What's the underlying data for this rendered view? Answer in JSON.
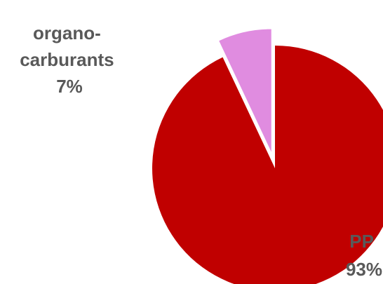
{
  "chart_data": {
    "type": "pie",
    "title": "",
    "slices": [
      {
        "label_lines": [
          "organo-",
          "carburants",
          "7%"
        ],
        "value": 7,
        "color": "#e08ce0",
        "exploded": true
      },
      {
        "label_lines": [
          "PP",
          "93%"
        ],
        "value": 93,
        "color": "#c00000",
        "exploded": false
      }
    ],
    "legend": "none",
    "start_angle": "12 o'clock, counter-clockwise for first slice"
  }
}
